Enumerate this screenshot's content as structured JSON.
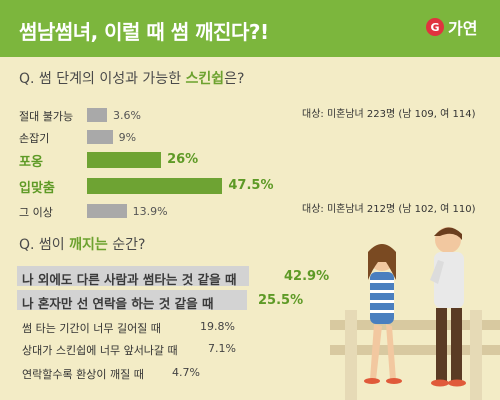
{
  "header": {
    "title": "썸남썸녀, 이럴 때 썸 깨진다?!",
    "brand": "가연",
    "brand_mark": "G",
    "bg_color": "#7cb63d"
  },
  "q1": {
    "prefix": "Q. 썸 단계의 이성과 가능한 ",
    "highlight": "스킨쉽",
    "suffix": "은?",
    "note_top": "대상: 미혼남녀 223명 (남 109, 여 114)",
    "note_bottom": "대상: 미혼남녀 212명 (남 102, 여 110)"
  },
  "q2": {
    "prefix": "Q. 썸이 ",
    "highlight": "깨지는",
    "suffix": " 순간?"
  },
  "chart_data": [
    {
      "type": "bar",
      "orientation": "horizontal",
      "categories": [
        "절대 불가능",
        "손잡기",
        "포옹",
        "입맞춤",
        "그 이상"
      ],
      "values": [
        3.6,
        9,
        26,
        47.5,
        13.9
      ],
      "labels": [
        "3.6%",
        "9%",
        "26%",
        "47.5%",
        "13.9%"
      ],
      "highlighted": [
        false,
        false,
        true,
        true,
        false
      ],
      "colors": {
        "normal": "#a9a9a9",
        "highlight": "#6ea333"
      }
    },
    {
      "type": "table",
      "rows": [
        {
          "text": "나 외에도 다른 사람과 썸타는 것 같을 때",
          "value": "42.9%",
          "highlighted": true
        },
        {
          "text": "나 혼자만 선 연락을 하는 것 같을 때",
          "value": "25.5%",
          "highlighted": true
        },
        {
          "text": "썸 타는 기간이 너무 길어질 때",
          "value": "19.8%",
          "highlighted": false
        },
        {
          "text": "상대가 스킨쉽에 너무 앞서나갈 때",
          "value": "7.1%",
          "highlighted": false
        },
        {
          "text": "연락할수록 환상이 깨질 때",
          "value": "4.7%",
          "highlighted": false
        }
      ]
    }
  ],
  "colors": {
    "background": "#f3ecc6",
    "accent": "#7cb63d",
    "highlight_text": "#5e9a26"
  }
}
